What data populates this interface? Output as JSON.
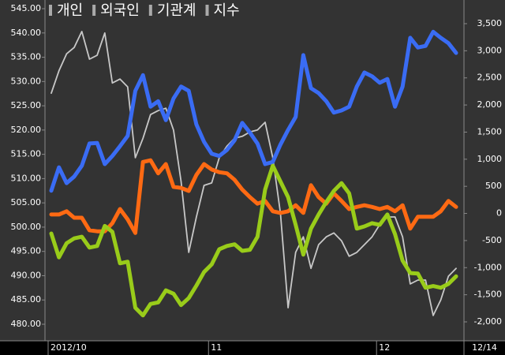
{
  "chart_data": {
    "type": "line",
    "categories": [
      "2012/10",
      null,
      null,
      null,
      null,
      null,
      null,
      null,
      null,
      null,
      null,
      null,
      null,
      null,
      null,
      null,
      null,
      null,
      null,
      null,
      null,
      "11",
      null,
      null,
      null,
      null,
      null,
      null,
      null,
      null,
      null,
      null,
      null,
      null,
      null,
      null,
      null,
      null,
      null,
      null,
      null,
      null,
      null,
      "12",
      null,
      null,
      null,
      null,
      null,
      null,
      null,
      null,
      null,
      "12/14"
    ],
    "series": [
      {
        "name": "지수",
        "color": "#c8c8c8",
        "axis": "y",
        "values": [
          527.6,
          532.2,
          535.7,
          537.0,
          540.3,
          534.6,
          535.4,
          540.0,
          529.7,
          530.5,
          528.9,
          514.3,
          518.3,
          523.2,
          524.0,
          524.5,
          520.0,
          509.4,
          494.8,
          502.1,
          508.6,
          509.1,
          514.3,
          516.7,
          518.3,
          518.7,
          519.6,
          520.0,
          521.6,
          514.3,
          502.9,
          483.4,
          494.8,
          498.0,
          491.5,
          496.4,
          498.0,
          498.8,
          497.2,
          494.0,
          494.8,
          496.4,
          498.0,
          500.5,
          502.1,
          502.1,
          498.0,
          488.3,
          489.1,
          489.1,
          481.8,
          485.0,
          489.9,
          491.5
        ]
      },
      {
        "name": "개인",
        "color": "#3a6cf4",
        "axis": "y2",
        "values": [
          420,
          850,
          560,
          680,
          880,
          1290,
          1300,
          910,
          1060,
          1240,
          1430,
          2260,
          2550,
          1970,
          2070,
          1720,
          2120,
          2340,
          2260,
          1640,
          1320,
          1100,
          1060,
          1170,
          1350,
          1670,
          1490,
          1290,
          910,
          950,
          1270,
          1540,
          1780,
          2920,
          2310,
          2220,
          2070,
          1860,
          1900,
          1970,
          2340,
          2600,
          2530,
          2410,
          2480,
          1970,
          2340,
          3240,
          3060,
          3090,
          3350,
          3240,
          3140,
          2960
        ]
      },
      {
        "name": "외국인",
        "color": "#ff6a13",
        "axis": "y2",
        "values": [
          -20,
          -20,
          40,
          -80,
          -80,
          -310,
          -330,
          -330,
          -180,
          80,
          -110,
          -360,
          950,
          980,
          740,
          910,
          490,
          470,
          415,
          710,
          910,
          810,
          760,
          740,
          620,
          440,
          300,
          180,
          230,
          40,
          10,
          40,
          150,
          10,
          520,
          300,
          180,
          370,
          230,
          80,
          120,
          150,
          120,
          80,
          120,
          40,
          150,
          -280,
          -60,
          -60,
          -60,
          40,
          230,
          120
        ]
      },
      {
        "name": "기관계",
        "color": "#99cc1a",
        "axis": "y2",
        "values": [
          -370,
          -810,
          -550,
          -460,
          -430,
          -630,
          -600,
          -230,
          -340,
          -920,
          -890,
          -1740,
          -1880,
          -1670,
          -1640,
          -1420,
          -1480,
          -1690,
          -1560,
          -1330,
          -1080,
          -940,
          -660,
          -600,
          -570,
          -690,
          -670,
          -430,
          440,
          880,
          590,
          300,
          -210,
          -760,
          -280,
          -20,
          210,
          415,
          560,
          370,
          -280,
          -240,
          -180,
          -210,
          -20,
          -380,
          -870,
          -1100,
          -1110,
          -1370,
          -1340,
          -1370,
          -1300,
          -1160
        ]
      }
    ],
    "ylim": [
      480,
      545
    ],
    "yticks": [
      {
        "value": 480,
        "label": "480.00"
      },
      {
        "value": 485,
        "label": "485.00"
      },
      {
        "value": 490,
        "label": "490.00"
      },
      {
        "value": 495,
        "label": "495.00"
      },
      {
        "value": 500,
        "label": "500.00"
      },
      {
        "value": 505,
        "label": "505.00"
      },
      {
        "value": 510,
        "label": "510.00"
      },
      {
        "value": 515,
        "label": "515.00"
      },
      {
        "value": 520,
        "label": "520.00"
      },
      {
        "value": 525,
        "label": "525.00"
      },
      {
        "value": 530,
        "label": "530.00"
      },
      {
        "value": 535,
        "label": "535.00"
      },
      {
        "value": 540,
        "label": "540.00"
      },
      {
        "value": 545,
        "label": "545.00"
      }
    ],
    "y2lim": [
      -2000,
      3500
    ],
    "y2ticks": [
      {
        "value": -2000,
        "label": "-2,000"
      },
      {
        "value": -1500,
        "label": "-1,500"
      },
      {
        "value": -1000,
        "label": "-1,000"
      },
      -500,
      0,
      500,
      {
        "value": 1000,
        "label": "1,000"
      },
      {
        "value": 1500,
        "label": "1,500"
      },
      {
        "value": 2000,
        "label": "2,000"
      },
      {
        "value": 2500,
        "label": "2,500"
      },
      {
        "value": 3000,
        "label": "3,000"
      },
      {
        "value": 3500,
        "label": "3,500"
      }
    ],
    "grid": false
  }
}
